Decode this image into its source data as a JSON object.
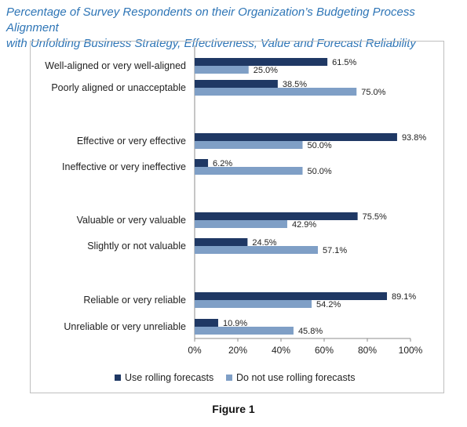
{
  "header": {
    "title_line1": "Percentage of Survey Respondents on their Organization’s Budgeting Process Alignment",
    "title_line2": "with Unfolding Business Strategy, Effectiveness, Value and Forecast Reliability"
  },
  "caption": "Figure 1",
  "colors": {
    "series1": "#1f3864",
    "series2": "#7f9fc6"
  },
  "chart_data": {
    "type": "bar",
    "orientation": "horizontal",
    "categories": [
      "Well-aligned or very well-aligned",
      "Poorly aligned or unacceptable",
      "Effective or very effective",
      "Ineffective or very ineffective",
      "Valuable or very valuable",
      "Slightly or not valuable",
      "Reliable or very reliable",
      "Unreliable or very unreliable"
    ],
    "series": [
      {
        "name": "Use rolling forecasts",
        "values": [
          61.5,
          38.5,
          93.8,
          6.2,
          75.5,
          24.5,
          89.1,
          10.9
        ]
      },
      {
        "name": "Do not use rolling forecasts",
        "values": [
          25.0,
          75.0,
          50.0,
          50.0,
          42.9,
          57.1,
          54.2,
          45.8
        ]
      }
    ],
    "value_labels": [
      [
        "61.5%",
        "38.5%",
        "93.8%",
        "6.2%",
        "75.5%",
        "24.5%",
        "89.1%",
        "10.9%"
      ],
      [
        "25.0%",
        "75.0%",
        "50.0%",
        "50.0%",
        "42.9%",
        "57.1%",
        "54.2%",
        "45.8%"
      ]
    ],
    "xticks": [
      "0%",
      "20%",
      "40%",
      "60%",
      "80%",
      "100%"
    ],
    "xlim": [
      0,
      100
    ],
    "grid": false,
    "legend_position": "bottom"
  }
}
